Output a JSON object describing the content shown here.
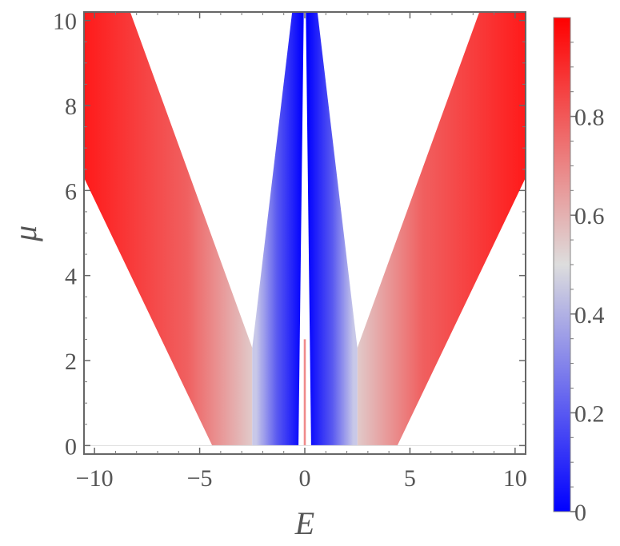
{
  "chart_data": {
    "type": "heatmap",
    "title": "",
    "xlabel": "E",
    "ylabel": "μ",
    "xlim": [
      -10.5,
      10.5
    ],
    "ylim": [
      -0.2,
      10.2
    ],
    "x_ticks": [
      {
        "value": -10,
        "label": "−10"
      },
      {
        "value": -5,
        "label": "−5"
      },
      {
        "value": 0,
        "label": "0"
      },
      {
        "value": 5,
        "label": "5"
      },
      {
        "value": 10,
        "label": "10"
      }
    ],
    "y_ticks": [
      {
        "value": 0,
        "label": "0"
      },
      {
        "value": 2,
        "label": "2"
      },
      {
        "value": 4,
        "label": "4"
      },
      {
        "value": 6,
        "label": "6"
      },
      {
        "value": 8,
        "label": "8"
      },
      {
        "value": 10,
        "label": "10"
      }
    ],
    "colorbar": {
      "min": 0,
      "max": 1,
      "ticks": [
        {
          "value": 0,
          "label": "0"
        },
        {
          "value": 0.2,
          "label": "0.2"
        },
        {
          "value": 0.4,
          "label": "0.4"
        },
        {
          "value": 0.6,
          "label": "0.6"
        },
        {
          "value": 0.8,
          "label": "0.8"
        }
      ],
      "colors": [
        "#0000ff",
        "#dddddd",
        "#ff0000"
      ]
    },
    "regions": [
      {
        "name": "left-outer-band",
        "vertices": [
          [
            -10.5,
            10.2
          ],
          [
            -8.3,
            10.2
          ],
          [
            -2.5,
            2.3
          ],
          [
            -2.5,
            0
          ],
          [
            -4.4,
            0
          ],
          [
            -10.5,
            6.3
          ]
        ],
        "value_edge": 0.98,
        "value_inner": 0.55
      },
      {
        "name": "right-outer-band",
        "vertices": [
          [
            10.5,
            10.2
          ],
          [
            8.3,
            10.2
          ],
          [
            2.5,
            2.3
          ],
          [
            2.5,
            0
          ],
          [
            4.4,
            0
          ],
          [
            10.5,
            6.3
          ]
        ],
        "value_edge": 0.98,
        "value_inner": 0.55
      },
      {
        "name": "left-inner-band",
        "vertices": [
          [
            -0.6,
            10.2
          ],
          [
            -2.5,
            2.3
          ],
          [
            -2.5,
            0
          ],
          [
            -0.3,
            0
          ],
          [
            -0.05,
            10.2
          ]
        ],
        "value_outer": 0.45,
        "value_inner": 0.02
      },
      {
        "name": "right-inner-band",
        "vertices": [
          [
            0.6,
            10.2
          ],
          [
            2.5,
            2.3
          ],
          [
            2.5,
            0
          ],
          [
            0.3,
            0
          ],
          [
            0.05,
            10.2
          ]
        ],
        "value_outer": 0.45,
        "value_inner": 0.02
      },
      {
        "name": "center-line",
        "vertices": [
          [
            -0.05,
            2.5
          ],
          [
            0.05,
            2.5
          ],
          [
            0.05,
            0
          ],
          [
            -0.05,
            0
          ]
        ],
        "value": 0.85
      }
    ]
  }
}
